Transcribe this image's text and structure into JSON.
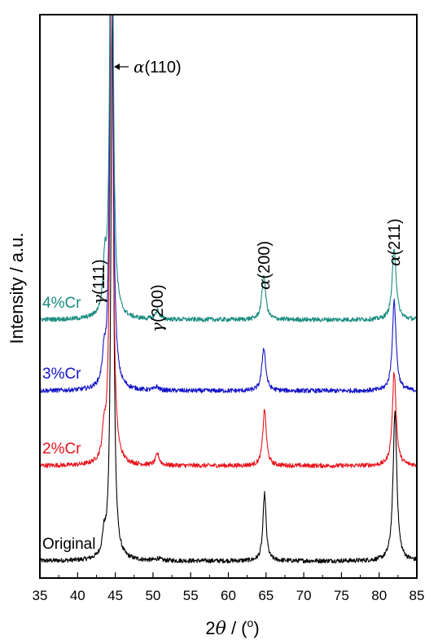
{
  "chart_data": {
    "type": "line",
    "xlabel": {
      "prefix": "2",
      "symbol": "θ",
      "suffix": " / (",
      "unit": "o",
      "close": ")"
    },
    "ylabel": "Intensity / a.u.",
    "xlim": [
      35,
      85
    ],
    "xticks": [
      35,
      40,
      45,
      50,
      55,
      60,
      65,
      70,
      75,
      80,
      85
    ],
    "grid": false,
    "y_ticks_labeled": false,
    "series": [
      {
        "name": "Original",
        "color": "#000000",
        "baseline": 0,
        "peaks": [
          {
            "x": 43.5,
            "h": 0.25,
            "w": 0.25
          },
          {
            "x": 44.6,
            "h": 7.3,
            "w": 0.22
          },
          {
            "x": 50.7,
            "h": 0.03,
            "w": 0.3
          },
          {
            "x": 64.8,
            "h": 0.9,
            "w": 0.25
          },
          {
            "x": 82.1,
            "h": 2.0,
            "w": 0.3
          }
        ]
      },
      {
        "name": "2%Cr",
        "color": "#e8141c",
        "baseline": 1.27,
        "peaks": [
          {
            "x": 43.5,
            "h": 0.35,
            "w": 0.25
          },
          {
            "x": 44.5,
            "h": 8.0,
            "w": 0.22
          },
          {
            "x": 50.6,
            "h": 0.15,
            "w": 0.3
          },
          {
            "x": 64.8,
            "h": 0.75,
            "w": 0.28
          },
          {
            "x": 82.0,
            "h": 1.25,
            "w": 0.3
          }
        ]
      },
      {
        "name": "3%Cr",
        "color": "#1414c8",
        "baseline": 2.27,
        "peaks": [
          {
            "x": 43.5,
            "h": 0.35,
            "w": 0.25
          },
          {
            "x": 44.5,
            "h": 8.0,
            "w": 0.22
          },
          {
            "x": 50.5,
            "h": 0.05,
            "w": 0.3
          },
          {
            "x": 64.7,
            "h": 0.58,
            "w": 0.3
          },
          {
            "x": 82.0,
            "h": 1.2,
            "w": 0.3
          }
        ]
      },
      {
        "name": "4%Cr",
        "color": "#1a8c80",
        "baseline": 3.22,
        "peaks": [
          {
            "x": 43.6,
            "h": 0.6,
            "w": 0.25
          },
          {
            "x": 44.5,
            "h": 8.0,
            "w": 0.22
          },
          {
            "x": 50.6,
            "h": 0.12,
            "w": 0.3
          },
          {
            "x": 64.7,
            "h": 0.6,
            "w": 0.3
          },
          {
            "x": 82.0,
            "h": 0.95,
            "w": 0.32
          }
        ]
      }
    ],
    "peak_labels": [
      {
        "symbol": "α",
        "text": "(110)",
        "x": 44.5,
        "arrow": true
      },
      {
        "symbol": "γ",
        "text": "(111)",
        "x": 43.6
      },
      {
        "symbol": "γ",
        "text": "(200)",
        "x": 50.6
      },
      {
        "symbol": "α",
        "text": "(200)",
        "x": 64.7
      },
      {
        "symbol": "α",
        "text": "(211)",
        "x": 82.0
      }
    ]
  }
}
